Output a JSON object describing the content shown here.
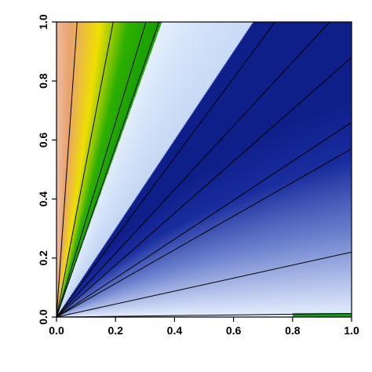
{
  "chart_data": {
    "type": "heatmap",
    "title": "",
    "xlabel": "",
    "ylabel": "",
    "xlim": [
      0,
      1
    ],
    "ylim": [
      0,
      1
    ],
    "x_ticks": [
      "0.0",
      "0.2",
      "0.4",
      "0.6",
      "0.8",
      "1.0"
    ],
    "y_ticks": [
      "0.0",
      "0.2",
      "0.4",
      "0.6",
      "0.8",
      "1.0"
    ],
    "grid": false,
    "legend": "none",
    "regions": [
      {
        "region": "above the line y = 2.8x",
        "palette": "pink-orange-yellow-green",
        "colors": [
          "#f3d0cc",
          "#e8a36c",
          "#f0e000",
          "#2eb000",
          "#18a000"
        ]
      },
      {
        "region": "between y = 1.5x and y = 2.8x",
        "palette": "light blue",
        "colors": [
          "#e8f2ff",
          "#b7cdf0"
        ]
      },
      {
        "region": "below the line y = 1.5x",
        "palette": "blue",
        "colors": [
          "#e8f0ff",
          "#6f84cf",
          "#1a2d9e",
          "#0e1f8a"
        ]
      },
      {
        "region": "thin strip along the x axis near x = 0.8–1.0",
        "palette": "green",
        "colors": [
          "#1a9a1a"
        ]
      }
    ],
    "contour_slopes": [
      14.3,
      5.2,
      3.3,
      2.88,
      1.35,
      1.08,
      0.88,
      0.66,
      0.57,
      0.22,
      0.012
    ]
  }
}
